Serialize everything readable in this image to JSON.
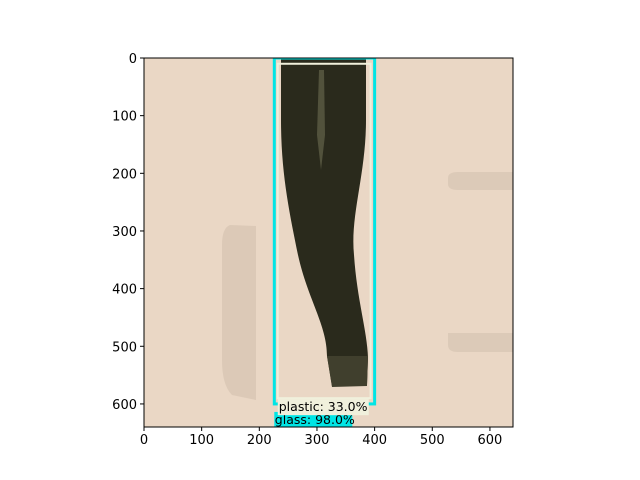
{
  "image": {
    "width": 640,
    "height": 640,
    "colors": {
      "background": "#ead7c5",
      "shadow": "#cdbba9",
      "bottle": "#2a2a1c",
      "bottle_highlight": "#5c5c45",
      "lip": "#403f2d"
    }
  },
  "axes": {
    "xlim": [
      0,
      640
    ],
    "ylim": [
      640,
      0
    ],
    "x_ticks": [
      "0",
      "100",
      "200",
      "300",
      "400",
      "500",
      "600"
    ],
    "y_ticks": [
      "0",
      "100",
      "200",
      "300",
      "400",
      "500",
      "600"
    ]
  },
  "detections": [
    {
      "label": "glass: 98.0%",
      "box": {
        "x0": 226,
        "y0": 0,
        "x1": 400,
        "y1": 600
      },
      "color": "#00e5e5",
      "label_bg": "#00e5e5"
    },
    {
      "label": "plastic: 33.0%",
      "box": {
        "x0": 232,
        "y0": 10,
        "x1": 393,
        "y1": 590
      },
      "color": "#f0f0dc",
      "label_bg": "#f0f0dc"
    }
  ]
}
